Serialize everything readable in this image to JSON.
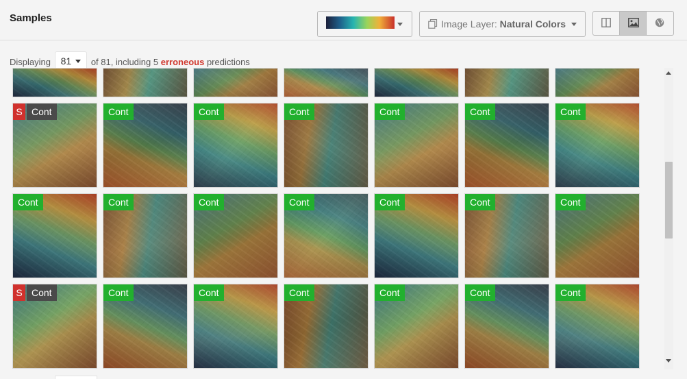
{
  "header": {
    "title": "Samples",
    "colormap_icon": "colormap-gradient-swatch",
    "image_layer_prefix": "Image Layer:",
    "image_layer_value": "Natural Colors",
    "view_icons": [
      "columns-icon",
      "image-icon",
      "globe-icon"
    ],
    "active_view": "image-icon"
  },
  "status": {
    "displaying_label": "Displaying",
    "count": "81",
    "of_text": "of 81, including 5",
    "erroneous_label": "erroneous",
    "predictions_label": "predictions"
  },
  "colors": {
    "error_red": "#d0312d",
    "cont_green": "#22b02e",
    "active_seg": "#c9c9c9"
  },
  "rows": [
    {
      "partial": true,
      "tiles": [
        {},
        {},
        {},
        {},
        {},
        {},
        {}
      ]
    },
    {
      "tiles": [
        {
          "flag": "S",
          "label": "Cont"
        },
        {
          "label": "Cont"
        },
        {
          "label": "Cont"
        },
        {
          "label": "Cont"
        },
        {
          "label": "Cont"
        },
        {
          "label": "Cont"
        },
        {
          "label": "Cont"
        }
      ]
    },
    {
      "tiles": [
        {
          "label": "Cont"
        },
        {
          "label": "Cont"
        },
        {
          "label": "Cont"
        },
        {
          "label": "Cont"
        },
        {
          "label": "Cont"
        },
        {
          "label": "Cont"
        },
        {
          "label": "Cont"
        }
      ]
    },
    {
      "tiles": [
        {
          "flag": "S",
          "label": "Cont"
        },
        {
          "label": "Cont"
        },
        {
          "label": "Cont"
        },
        {
          "label": "Cont"
        },
        {
          "label": "Cont"
        },
        {
          "label": "Cont"
        },
        {
          "label": "Cont"
        }
      ]
    }
  ]
}
